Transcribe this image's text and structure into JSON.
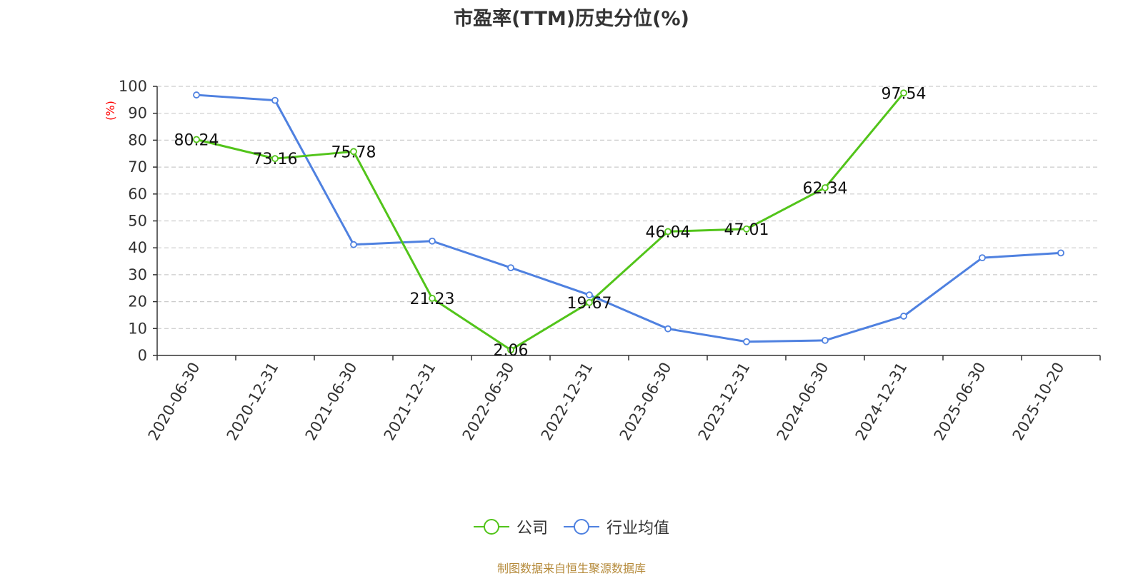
{
  "chart_data": {
    "type": "line",
    "title": "市盈率(TTM)历史分位(%)",
    "ylabel": "(%)",
    "xlabel": "",
    "ylim": [
      0,
      100
    ],
    "yticks": [
      0,
      10,
      20,
      30,
      40,
      50,
      60,
      70,
      80,
      90,
      100
    ],
    "grid": true,
    "legend_position": "bottom",
    "categories": [
      "2020-06-30",
      "2020-12-31",
      "2021-06-30",
      "2021-12-31",
      "2022-06-30",
      "2022-12-31",
      "2023-06-30",
      "2023-12-31",
      "2024-06-30",
      "2024-12-31",
      "2025-06-30",
      "2025-10-20"
    ],
    "series": [
      {
        "name": "公司",
        "color": "#52c41a",
        "show_labels": true,
        "values": [
          80.24,
          73.16,
          75.78,
          21.23,
          2.06,
          19.67,
          46.04,
          47.01,
          62.34,
          97.54,
          null,
          null
        ],
        "labels": [
          "80.24",
          "73.16",
          "75.78",
          "21.23",
          "2.06",
          "19.67",
          "46.04",
          "47.01",
          "62.34",
          "97.54",
          "",
          ""
        ]
      },
      {
        "name": "行业均值",
        "color": "#4f81e0",
        "show_labels": false,
        "values": [
          96.8,
          94.8,
          41.2,
          42.5,
          32.6,
          22.5,
          9.9,
          5.1,
          5.6,
          14.6,
          36.3,
          38.1
        ]
      }
    ],
    "source": "制图数据来自恒生聚源数据库"
  }
}
